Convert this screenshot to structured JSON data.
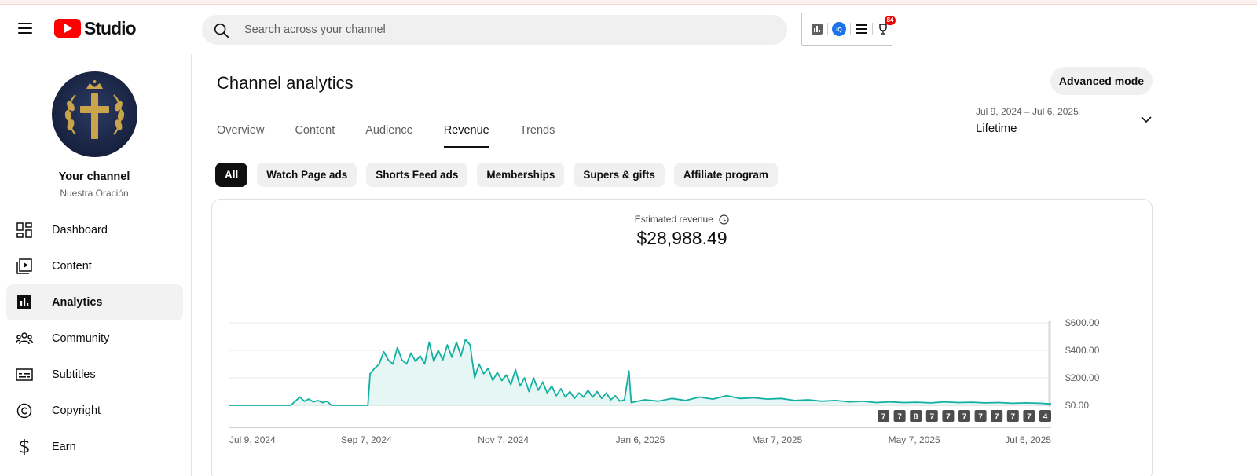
{
  "header": {
    "logo_text": "Studio",
    "search_placeholder": "Search across your channel",
    "extension_badge": "84"
  },
  "sidebar": {
    "channel_name": "Your channel",
    "channel_handle": "Nuestra Oración",
    "items": [
      {
        "label": "Dashboard",
        "icon": "dashboard-icon"
      },
      {
        "label": "Content",
        "icon": "content-icon"
      },
      {
        "label": "Analytics",
        "icon": "analytics-icon",
        "active": true
      },
      {
        "label": "Community",
        "icon": "community-icon"
      },
      {
        "label": "Subtitles",
        "icon": "subtitles-icon"
      },
      {
        "label": "Copyright",
        "icon": "copyright-icon"
      },
      {
        "label": "Earn",
        "icon": "earn-icon"
      }
    ]
  },
  "main": {
    "title": "Channel analytics",
    "advanced_mode": "Advanced mode",
    "tabs": [
      "Overview",
      "Content",
      "Audience",
      "Revenue",
      "Trends"
    ],
    "active_tab": "Revenue",
    "date_range": {
      "range": "Jul 9, 2024 – Jul 6, 2025",
      "label": "Lifetime"
    },
    "chips": [
      "All",
      "Watch Page ads",
      "Shorts Feed ads",
      "Memberships",
      "Supers & gifts",
      "Affiliate program"
    ],
    "metric": {
      "label": "Estimated revenue",
      "value": "$28,988.49"
    }
  },
  "chart_data": {
    "type": "area",
    "title": "",
    "xlabel": "",
    "ylabel": "",
    "ylim": [
      0,
      600
    ],
    "y_ticks": [
      "$600.00",
      "$400.00",
      "$200.00",
      "$0.00"
    ],
    "x_tick_labels": [
      "Jul 9, 2024",
      "Sep 7, 2024",
      "Nov 7, 2024",
      "Jan 6, 2025",
      "Mar 7, 2025",
      "May 7, 2025",
      "Jul 6, 2025"
    ],
    "color": "#12b0a0",
    "fill": "#e6f6f4",
    "grid": true,
    "series": [
      {
        "points": [
          [
            "2024-07-09",
            0
          ],
          [
            "2024-08-05",
            0
          ],
          [
            "2024-08-07",
            30
          ],
          [
            "2024-08-09",
            60
          ],
          [
            "2024-08-11",
            30
          ],
          [
            "2024-08-13",
            45
          ],
          [
            "2024-08-15",
            25
          ],
          [
            "2024-08-17",
            35
          ],
          [
            "2024-08-19",
            20
          ],
          [
            "2024-08-21",
            30
          ],
          [
            "2024-08-23",
            0
          ],
          [
            "2024-09-08",
            0
          ],
          [
            "2024-09-09",
            230
          ],
          [
            "2024-09-11",
            270
          ],
          [
            "2024-09-13",
            300
          ],
          [
            "2024-09-15",
            390
          ],
          [
            "2024-09-17",
            330
          ],
          [
            "2024-09-19",
            300
          ],
          [
            "2024-09-21",
            420
          ],
          [
            "2024-09-23",
            330
          ],
          [
            "2024-09-25",
            300
          ],
          [
            "2024-09-27",
            380
          ],
          [
            "2024-09-29",
            320
          ],
          [
            "2024-10-01",
            360
          ],
          [
            "2024-10-03",
            300
          ],
          [
            "2024-10-05",
            460
          ],
          [
            "2024-10-07",
            320
          ],
          [
            "2024-10-09",
            400
          ],
          [
            "2024-10-11",
            330
          ],
          [
            "2024-10-13",
            440
          ],
          [
            "2024-10-15",
            350
          ],
          [
            "2024-10-17",
            460
          ],
          [
            "2024-10-19",
            360
          ],
          [
            "2024-10-21",
            480
          ],
          [
            "2024-10-23",
            440
          ],
          [
            "2024-10-25",
            200
          ],
          [
            "2024-10-27",
            300
          ],
          [
            "2024-10-29",
            230
          ],
          [
            "2024-10-31",
            270
          ],
          [
            "2024-11-02",
            180
          ],
          [
            "2024-11-04",
            240
          ],
          [
            "2024-11-06",
            180
          ],
          [
            "2024-11-08",
            220
          ],
          [
            "2024-11-10",
            150
          ],
          [
            "2024-11-12",
            260
          ],
          [
            "2024-11-14",
            140
          ],
          [
            "2024-11-16",
            200
          ],
          [
            "2024-11-18",
            100
          ],
          [
            "2024-11-20",
            200
          ],
          [
            "2024-11-22",
            110
          ],
          [
            "2024-11-24",
            170
          ],
          [
            "2024-11-26",
            90
          ],
          [
            "2024-11-28",
            140
          ],
          [
            "2024-11-30",
            70
          ],
          [
            "2024-12-02",
            120
          ],
          [
            "2024-12-04",
            60
          ],
          [
            "2024-12-06",
            100
          ],
          [
            "2024-12-08",
            50
          ],
          [
            "2024-12-10",
            90
          ],
          [
            "2024-12-12",
            60
          ],
          [
            "2024-12-14",
            110
          ],
          [
            "2024-12-16",
            60
          ],
          [
            "2024-12-18",
            100
          ],
          [
            "2024-12-20",
            50
          ],
          [
            "2024-12-22",
            90
          ],
          [
            "2024-12-24",
            40
          ],
          [
            "2024-12-26",
            70
          ],
          [
            "2024-12-28",
            30
          ],
          [
            "2024-12-30",
            40
          ],
          [
            "2025-01-01",
            250
          ],
          [
            "2025-01-02",
            20
          ],
          [
            "2025-01-08",
            40
          ],
          [
            "2025-01-14",
            30
          ],
          [
            "2025-01-20",
            50
          ],
          [
            "2025-01-26",
            35
          ],
          [
            "2025-02-01",
            60
          ],
          [
            "2025-02-07",
            45
          ],
          [
            "2025-02-13",
            70
          ],
          [
            "2025-02-19",
            50
          ],
          [
            "2025-02-25",
            55
          ],
          [
            "2025-03-03",
            45
          ],
          [
            "2025-03-09",
            50
          ],
          [
            "2025-03-15",
            35
          ],
          [
            "2025-03-21",
            40
          ],
          [
            "2025-03-27",
            30
          ],
          [
            "2025-04-02",
            35
          ],
          [
            "2025-04-08",
            25
          ],
          [
            "2025-04-14",
            30
          ],
          [
            "2025-04-20",
            20
          ],
          [
            "2025-04-26",
            25
          ],
          [
            "2025-05-02",
            20
          ],
          [
            "2025-05-08",
            22
          ],
          [
            "2025-05-14",
            18
          ],
          [
            "2025-05-20",
            25
          ],
          [
            "2025-05-26",
            20
          ],
          [
            "2025-06-01",
            22
          ],
          [
            "2025-06-07",
            18
          ],
          [
            "2025-06-13",
            20
          ],
          [
            "2025-06-19",
            15
          ],
          [
            "2025-06-25",
            18
          ],
          [
            "2025-07-01",
            15
          ],
          [
            "2025-07-06",
            10
          ]
        ]
      }
    ],
    "video_markers": [
      "7",
      "7",
      "8",
      "7",
      "7",
      "7",
      "7",
      "7",
      "7",
      "7",
      "4"
    ]
  }
}
